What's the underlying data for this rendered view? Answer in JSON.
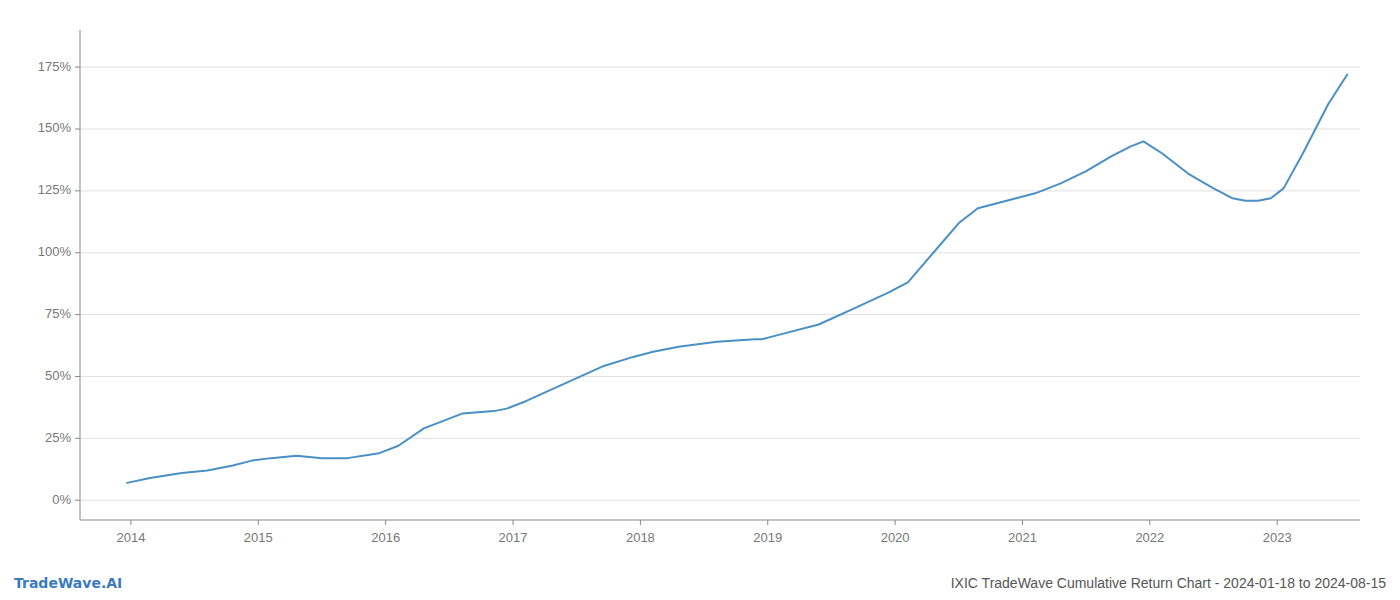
{
  "chart_data": {
    "type": "line",
    "title": "IXIC TradeWave Cumulative Return Chart - 2024-01-18 to 2024-08-15",
    "annotations": [
      "TradeWave.AI"
    ],
    "color": "#4a90c4",
    "grid": true,
    "x": [
      2013.97,
      2014.15,
      2014.4,
      2014.6,
      2014.8,
      2014.95,
      2015.1,
      2015.3,
      2015.5,
      2015.7,
      2015.95,
      2016.1,
      2016.3,
      2016.6,
      2016.85,
      2016.95,
      2017.1,
      2017.4,
      2017.7,
      2017.95,
      2018.1,
      2018.3,
      2018.6,
      2018.9,
      2018.95,
      2019.1,
      2019.4,
      2019.7,
      2019.95,
      2020.1,
      2020.3,
      2020.5,
      2020.65,
      2020.8,
      2020.95,
      2021.1,
      2021.3,
      2021.5,
      2021.7,
      2021.85,
      2021.95,
      2022.1,
      2022.3,
      2022.5,
      2022.65,
      2022.75,
      2022.85,
      2022.95,
      2023.05,
      2023.2,
      2023.4,
      2023.55
    ],
    "values": [
      7,
      9,
      11,
      12,
      14,
      16,
      17,
      18,
      17,
      17,
      19,
      22,
      29,
      35,
      36,
      37,
      40,
      47,
      54,
      58,
      60,
      62,
      64,
      65,
      65,
      67,
      71,
      78,
      84,
      88,
      100,
      112,
      118,
      120,
      122,
      124,
      128,
      133,
      139,
      143,
      145,
      140,
      132,
      126,
      122,
      121,
      121,
      122,
      126,
      140,
      160,
      172
    ],
    "xlim": [
      2013.6,
      2023.65
    ],
    "xticks": [
      2014,
      2015,
      2016,
      2017,
      2018,
      2019,
      2020,
      2021,
      2022,
      2023
    ],
    "ylim": [
      -8,
      190
    ],
    "yticks": [
      {
        "value": 0,
        "label": "0%"
      },
      {
        "value": 25,
        "label": "25%"
      },
      {
        "value": 50,
        "label": "50%"
      },
      {
        "value": 75,
        "label": "75%"
      },
      {
        "value": 100,
        "label": "100%"
      },
      {
        "value": 125,
        "label": "125%"
      },
      {
        "value": 150,
        "label": "150%"
      },
      {
        "value": 175,
        "label": "175%"
      }
    ]
  }
}
